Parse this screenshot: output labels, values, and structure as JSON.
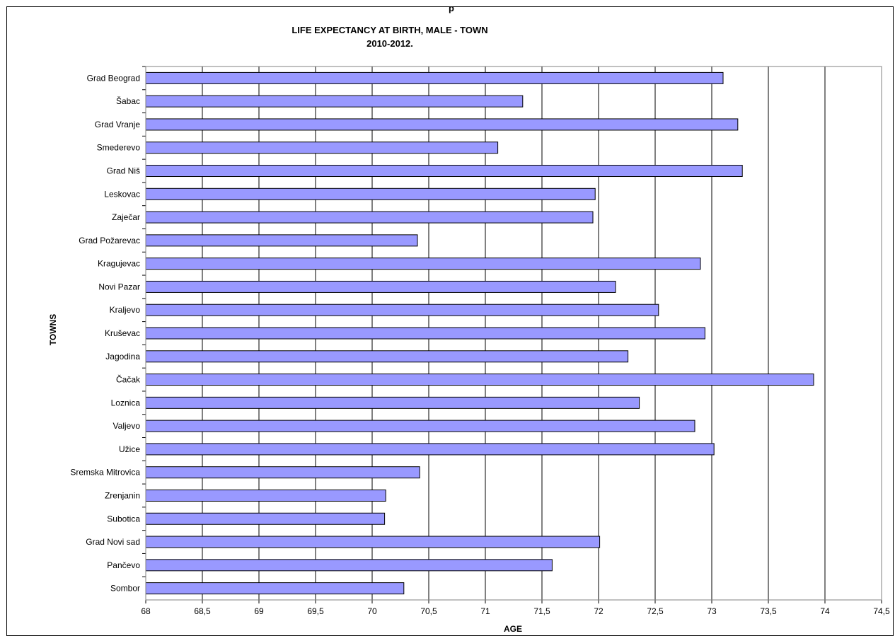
{
  "chart_data": {
    "type": "bar",
    "orientation": "horizontal",
    "title": "LIFE EXPECTANCY AT BIRTH, MALE - TOWN",
    "subtitle": "2010-2012.",
    "xlabel": "AGE",
    "ylabel": "TOWNS",
    "xlim": [
      68,
      74.5
    ],
    "x_ticks": [
      "68",
      "68,5",
      "69",
      "69,5",
      "70",
      "70,5",
      "71",
      "71,5",
      "72",
      "72,5",
      "73",
      "73,5",
      "74",
      "74,5"
    ],
    "grid": "vertical",
    "legend": "none",
    "bar_color": "#9999ff",
    "categories": [
      "Grad Beograd",
      "Šabac",
      "Grad Vranje",
      "Smederevo",
      "Grad Niš",
      "Leskovac",
      "Zaječar",
      "Grad Požarevac",
      "Kragujevac",
      "Novi Pazar",
      "Kraljevo",
      "Kruševac",
      "Jagodina",
      "Čačak",
      "Loznica",
      "Valjevo",
      "Užice",
      "Sremska Mitrovica",
      "Zrenjanin",
      "Subotica",
      "Grad Novi sad",
      "Pančevo",
      "Sombor"
    ],
    "values": [
      73.1,
      71.33,
      73.23,
      71.11,
      73.27,
      71.97,
      71.95,
      70.4,
      72.9,
      72.15,
      72.53,
      72.94,
      72.26,
      73.9,
      72.36,
      72.85,
      73.02,
      70.42,
      70.12,
      70.11,
      72.01,
      71.59,
      70.28
    ]
  },
  "top_fragment": "p"
}
